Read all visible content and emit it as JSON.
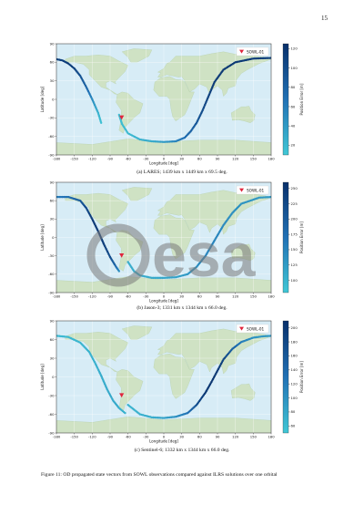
{
  "page": {
    "number": "15"
  },
  "figure": {
    "caption": "Figure 11:  OD propagated state vectors from SOWL observations compared against ILRS solutions over one orbital",
    "panels": [
      {
        "id": "lares",
        "caption": "(a) LARES; 1439 km x 1449 km x 69.5 deg."
      },
      {
        "id": "jason3",
        "caption": "(b) Jason-3; 1331 km x 1344 km x 66.0 deg."
      },
      {
        "id": "sentinel6",
        "caption": "(c) Sentinel-6; 1332 km x 1344 km x 66.0 deg."
      }
    ]
  },
  "watermark": {
    "text": "esa"
  },
  "colors": {
    "dark": "#08306b",
    "mid": "#2171b5",
    "light": "#41c8d6",
    "marker": "#e0243c",
    "land": "#cfe2c4",
    "sea": "#d7ecf6"
  },
  "chart_data": [
    {
      "type": "scatter",
      "xlabel": "Longitude [deg]",
      "ylabel": "Latitude [deg]",
      "xlim": [
        -180,
        180
      ],
      "ylim": [
        -90,
        90
      ],
      "xticks": [
        -180,
        -150,
        -120,
        -90,
        -60,
        -30,
        0,
        30,
        60,
        90,
        120,
        150,
        180
      ],
      "yticks": [
        -90,
        -60,
        -30,
        0,
        30,
        60,
        90
      ],
      "colorbar": {
        "label": "Position Error [m]",
        "ticks": [
          20,
          40,
          60,
          80,
          100,
          120
        ],
        "range": [
          10,
          125
        ]
      },
      "legend": {
        "label": "SOWL-01",
        "position": "top-right"
      },
      "station": {
        "lon": -70.7,
        "lat": -29.3
      },
      "track": {
        "segments": [
          {
            "x": [
              -180,
              -170,
              -160,
              -150,
              -140,
              -130,
              -120,
              -110,
              -105
            ],
            "y": [
              65,
              63,
              58,
              50,
              38,
              20,
              0,
              -22,
              -38
            ],
            "c": [
              110,
              112,
              115,
              110,
              95,
              80,
              50,
              25,
              15
            ]
          },
          {
            "x": [
              -75,
              -70,
              -60,
              -40,
              -20,
              0,
              20,
              35,
              45,
              55,
              65,
              75,
              85,
              100,
              120,
              150,
              180
            ],
            "y": [
              -25,
              -40,
              -55,
              -65,
              -68,
              -69,
              -68,
              -62,
              -52,
              -38,
              -18,
              5,
              28,
              48,
              60,
              66,
              67
            ],
            "c": [
              15,
              18,
              20,
              25,
              30,
              40,
              55,
              70,
              80,
              90,
              100,
              110,
              115,
              118,
              118,
              115,
              112
            ]
          }
        ]
      }
    },
    {
      "type": "scatter",
      "xlabel": "Longitude [deg]",
      "ylabel": "Latitude [deg]",
      "xlim": [
        -180,
        180
      ],
      "ylim": [
        -90,
        90
      ],
      "xticks": [
        -180,
        -150,
        -120,
        -90,
        -60,
        -30,
        0,
        30,
        60,
        90,
        120,
        150,
        180
      ],
      "yticks": [
        -90,
        -60,
        -30,
        0,
        30,
        60,
        90
      ],
      "colorbar": {
        "label": "Position Error [m]",
        "ticks": [
          100,
          125,
          150,
          175,
          200,
          225,
          250
        ],
        "range": [
          80,
          260
        ]
      },
      "legend": {
        "label": "SOWL-01",
        "position": "top-right"
      },
      "station": {
        "lon": -70.7,
        "lat": -29.3
      },
      "track": {
        "segments": [
          {
            "x": [
              -180,
              -160,
              -140,
              -130,
              -120,
              -110,
              -100,
              -90,
              -80,
              -75
            ],
            "y": [
              66,
              66,
              60,
              48,
              30,
              10,
              -12,
              -32,
              -48,
              -55
            ],
            "c": [
              160,
              175,
              200,
              225,
              245,
              250,
              240,
              220,
              180,
              140
            ]
          },
          {
            "x": [
              -60,
              -50,
              -40,
              -20,
              0,
              20,
              40,
              55,
              70,
              85,
              100,
              115,
              130,
              160,
              180
            ],
            "y": [
              -40,
              -55,
              -62,
              -66,
              -66,
              -65,
              -60,
              -48,
              -30,
              -5,
              20,
              40,
              55,
              65,
              66
            ],
            "c": [
              110,
              110,
              110,
              112,
              115,
              120,
              130,
              140,
              150,
              150,
              145,
              140,
              135,
              130,
              130
            ]
          }
        ]
      }
    },
    {
      "type": "scatter",
      "xlabel": "Longitude [deg]",
      "ylabel": "Latitude [deg]",
      "xlim": [
        -180,
        180
      ],
      "ylim": [
        -90,
        90
      ],
      "xticks": [
        -180,
        -150,
        -120,
        -90,
        -60,
        -30,
        0,
        30,
        60,
        90,
        120,
        150,
        180
      ],
      "yticks": [
        -90,
        -60,
        -30,
        0,
        30,
        60,
        90
      ],
      "colorbar": {
        "label": "Position Error [m]",
        "ticks": [
          60,
          80,
          100,
          120,
          140,
          160,
          180,
          200
        ],
        "range": [
          50,
          210
        ]
      },
      "legend": {
        "label": "SOWL-01",
        "position": "top-right"
      },
      "station": {
        "lon": -70.7,
        "lat": -29.3
      },
      "track": {
        "segments": [
          {
            "x": [
              -180,
              -160,
              -140,
              -125,
              -115,
              -105,
              -95,
              -85,
              -75,
              -65
            ],
            "y": [
              66,
              64,
              55,
              40,
              22,
              2,
              -20,
              -38,
              -50,
              -58
            ],
            "c": [
              65,
              65,
              68,
              70,
              72,
              75,
              78,
              80,
              75,
              70
            ]
          },
          {
            "x": [
              -60,
              -40,
              -20,
              0,
              20,
              40,
              55,
              70,
              80,
              90,
              100,
              115,
              130,
              150,
              165,
              180
            ],
            "y": [
              -45,
              -60,
              -65,
              -66,
              -64,
              -58,
              -45,
              -25,
              -8,
              10,
              28,
              45,
              56,
              63,
              65,
              66
            ],
            "c": [
              70,
              72,
              75,
              85,
              100,
              130,
              170,
              200,
              205,
              200,
              185,
              150,
              120,
              100,
              95,
              95
            ]
          }
        ]
      }
    }
  ]
}
